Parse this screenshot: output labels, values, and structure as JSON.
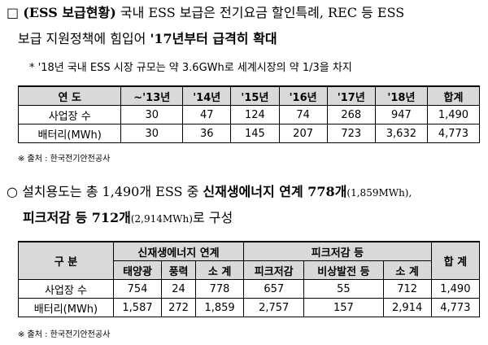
{
  "heading": {
    "marker": "□",
    "line1": [
      {
        "text": "(ESS 보급현황)",
        "bold": true
      },
      {
        "text": " 국내 ESS 보급은 전기요금 할인특례, REC 등 ESS",
        "bold": false
      }
    ],
    "line2": [
      {
        "text": "보급 지원정책에 힘입어 ",
        "bold": false
      },
      {
        "text": "'17년부터 급격히 확대",
        "bold": true
      }
    ]
  },
  "note": "* '18년 국내 ESS 시장 규모는 약 3.6GWh로 세계시장의 약 1/3을 차지",
  "table1": {
    "header": [
      "연 도",
      "~'13년",
      "'14년",
      "'15년",
      "'16년",
      "'17년",
      "'18년",
      "합계"
    ],
    "rows": [
      [
        "사업장 수",
        "30",
        "47",
        "124",
        "74",
        "268",
        "947",
        "1,490"
      ],
      [
        "배터리(MWh)",
        "30",
        "36",
        "145",
        "207",
        "723",
        "3,632",
        "4,773"
      ]
    ]
  },
  "source1": "※ 출처 : 한국전기안전공사",
  "paragraph": {
    "marker": "○",
    "line1": [
      {
        "text": "설치용도는 총 1,490개 ESS 중 ",
        "style": "normal"
      },
      {
        "text": "신재생에너지 연계 778개",
        "style": "bold"
      },
      {
        "text": "(1,859MWh),",
        "style": "small"
      }
    ],
    "line2": [
      {
        "text": "피크저감 등 712개",
        "style": "bold"
      },
      {
        "text": "(2,914MWh)",
        "style": "small"
      },
      {
        "text": "로 구성",
        "style": "normal"
      }
    ]
  },
  "table2": {
    "group_header": [
      "구 분",
      "신재생에너지 연계",
      "피크저감 등",
      "합 계"
    ],
    "sub_header": [
      "태양광",
      "풍력",
      "소 계",
      "피크저감",
      "비상발전 등",
      "소 계"
    ],
    "rows": [
      [
        "사업장 수",
        "754",
        "24",
        "778",
        "657",
        "55",
        "712",
        "1,490"
      ],
      [
        "배터리(MWh)",
        "1,587",
        "272",
        "1,859",
        "2,757",
        "157",
        "2,914",
        "4,773"
      ]
    ]
  },
  "source2": "※ 출처 : 한국전기안전공사"
}
